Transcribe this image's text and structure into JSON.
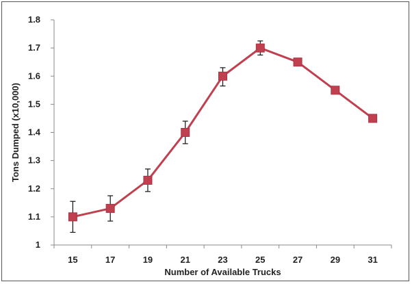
{
  "chart_data": {
    "type": "line",
    "title": "",
    "xlabel": "Number of Available Trucks",
    "ylabel": "Tons Dumped (x10,000)",
    "x": [
      15,
      17,
      19,
      21,
      23,
      25,
      27,
      29,
      31
    ],
    "x_tick_labels": [
      "15",
      "17",
      "19",
      "21",
      "23",
      "25",
      "27",
      "29",
      "31"
    ],
    "ylim": [
      1,
      1.8
    ],
    "y_ticks": [
      1,
      1.1,
      1.2,
      1.3,
      1.4,
      1.5,
      1.6,
      1.7,
      1.8
    ],
    "y_tick_labels": [
      "1",
      "1.1",
      "1.2",
      "1.3",
      "1.4",
      "1.5",
      "1.6",
      "1.7",
      "1.8"
    ],
    "series": [
      {
        "values": [
          1.1,
          1.13,
          1.23,
          1.4,
          1.6,
          1.7,
          1.65,
          1.55,
          1.45
        ],
        "error_low": [
          1.045,
          1.085,
          1.19,
          1.36,
          1.565,
          1.675,
          null,
          null,
          null
        ],
        "error_high": [
          1.155,
          1.175,
          1.27,
          1.44,
          1.63,
          1.725,
          null,
          null,
          null
        ],
        "color": "#c0404f",
        "marker": "square"
      }
    ],
    "grid": false,
    "legend": "none"
  }
}
